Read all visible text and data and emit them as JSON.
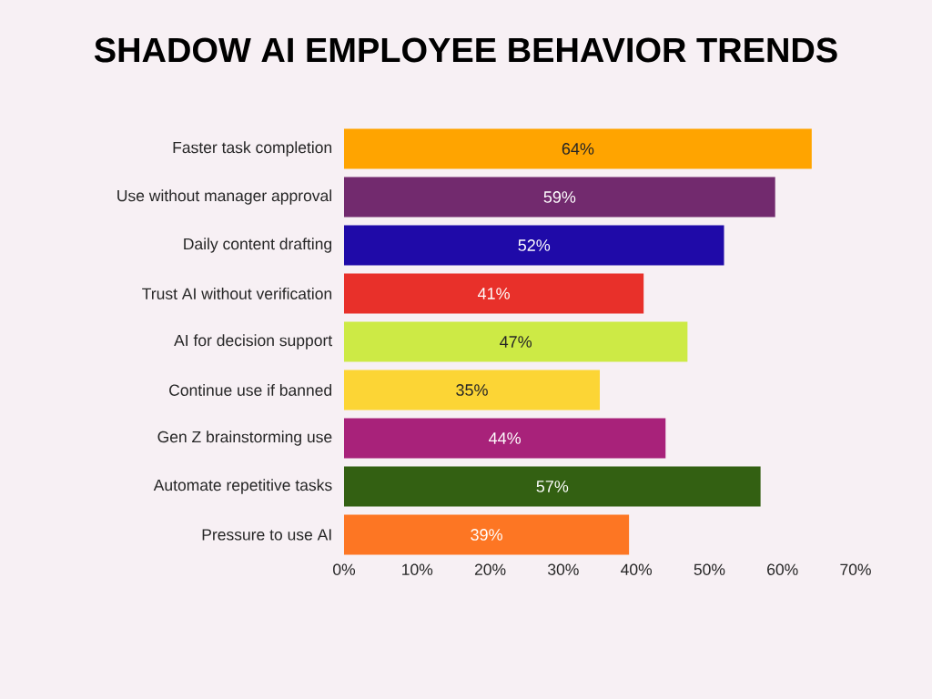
{
  "chart_data": {
    "type": "bar",
    "orientation": "horizontal",
    "title": "SHADOW AI EMPLOYEE BEHAVIOR TRENDS",
    "categories": [
      "Faster task completion",
      "Use without manager approval",
      "Daily content drafting",
      "Trust AI without verification",
      "AI for decision support",
      "Continue use if banned",
      "Gen Z brainstorming use",
      "Automate repetitive tasks",
      "Pressure to use AI"
    ],
    "values": [
      64,
      59,
      52,
      41,
      47,
      35,
      44,
      57,
      39
    ],
    "value_labels": [
      "64%",
      "59%",
      "52%",
      "41%",
      "47%",
      "35%",
      "44%",
      "57%",
      "39%"
    ],
    "colors": [
      "#ffa400",
      "#722a6e",
      "#1f0aa8",
      "#e8302a",
      "#cdea45",
      "#fcd535",
      "#a8227a",
      "#336012",
      "#fd7623"
    ],
    "xlim": [
      0,
      70
    ],
    "xticks": [
      {
        "value": 0,
        "label": "0%"
      },
      {
        "value": 10,
        "label": "10%"
      },
      {
        "value": 20,
        "label": "20%"
      },
      {
        "value": 30,
        "label": "30%"
      },
      {
        "value": 40,
        "label": "40%"
      },
      {
        "value": 50,
        "label": "50%"
      },
      {
        "value": 60,
        "label": "60%"
      },
      {
        "value": 70,
        "label": "70%"
      }
    ],
    "grid": false
  }
}
